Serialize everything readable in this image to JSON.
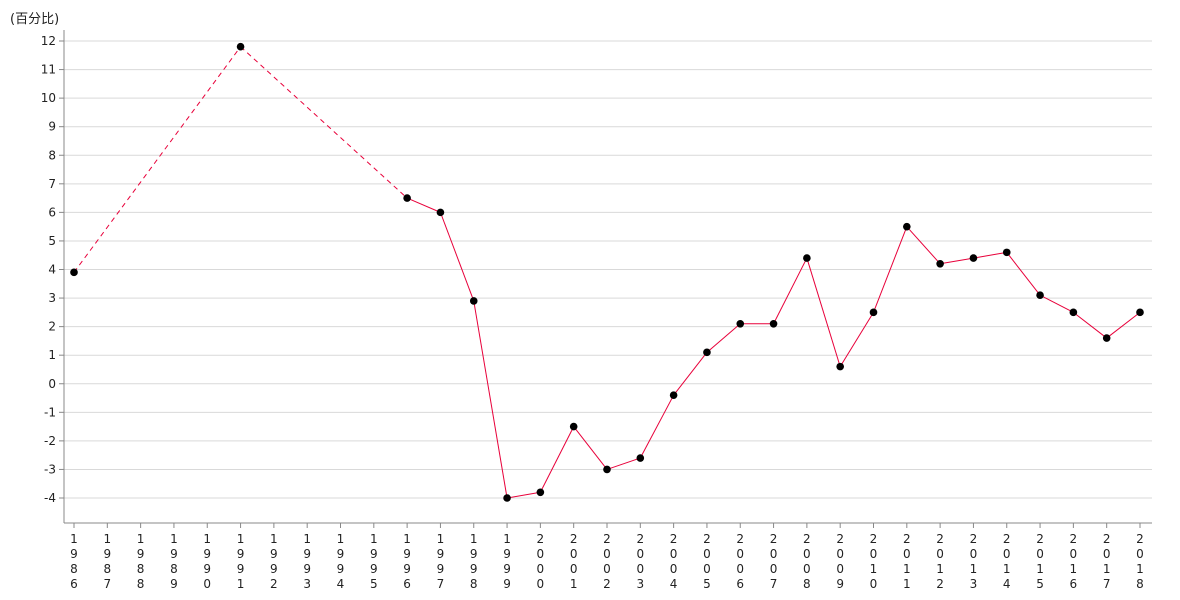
{
  "chart_data": {
    "type": "line",
    "ylabel": "(百分比)",
    "ylim": [
      -4,
      12
    ],
    "yticks": [
      -4,
      -3,
      -2,
      -1,
      0,
      1,
      2,
      3,
      4,
      5,
      6,
      7,
      8,
      9,
      10,
      11,
      12
    ],
    "grid": true,
    "x": [
      1986,
      1987,
      1988,
      1989,
      1990,
      1991,
      1992,
      1993,
      1994,
      1995,
      1996,
      1997,
      1998,
      1999,
      2000,
      2001,
      2002,
      2003,
      2004,
      2005,
      2006,
      2007,
      2008,
      2009,
      2010,
      2011,
      2012,
      2013,
      2014,
      2015,
      2016,
      2017,
      2018
    ],
    "series": [
      {
        "color": "#e8003a",
        "marker_color": "#000000",
        "values": [
          3.9,
          null,
          null,
          null,
          null,
          11.8,
          null,
          null,
          null,
          null,
          6.5,
          6.0,
          2.9,
          -4.0,
          -3.8,
          -1.5,
          -3.0,
          -2.6,
          -0.4,
          1.1,
          2.1,
          2.1,
          4.4,
          0.6,
          2.5,
          5.5,
          4.2,
          4.4,
          4.6,
          3.1,
          2.5,
          1.6,
          2.5
        ],
        "gaps_drawn": "dashed"
      }
    ]
  }
}
